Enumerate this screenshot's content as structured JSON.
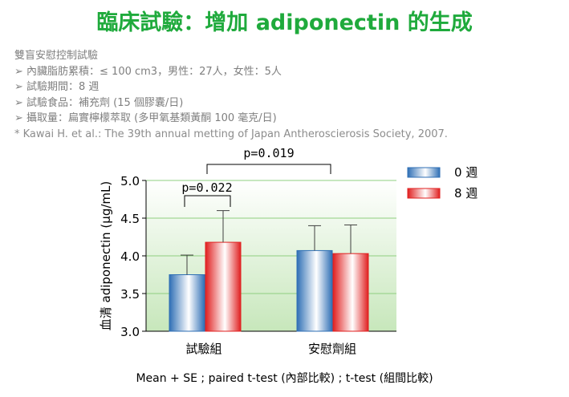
{
  "title": "臨床試驗：增加 adiponectin 的生成",
  "study_info": {
    "heading": "雙盲安慰控制試驗",
    "items": [
      "➢ 內臟脂肪累積：≤ 100 cm3，男性：27人，女性：5人",
      "➢ 試驗期間：8 週",
      "➢ 試驗食品：補充劑 (15 個膠囊/日)",
      "➢ 攝取量：扁實檸檬萃取 (多甲氧基類黃酮 100 毫克/日)"
    ],
    "reference": "* Kawai H. et al.: The 39th annual metting of Japan Antheroscierosis Society, 2007."
  },
  "chart_data": {
    "type": "bar",
    "categories": [
      "試驗組",
      "安慰劑組"
    ],
    "series": [
      {
        "name": "0 週",
        "values": [
          3.75,
          4.07
        ],
        "error": [
          0.26,
          0.33
        ],
        "color": "#2f6fb5"
      },
      {
        "name": "8 週",
        "values": [
          4.18,
          4.03
        ],
        "error": [
          0.42,
          0.38
        ],
        "color": "#e02020"
      }
    ],
    "ylabel": "血清 adiponectin (μg/mL)",
    "ylim": [
      3.0,
      5.0
    ],
    "yticks": [
      "3.0",
      "3.5",
      "4.0",
      "4.5",
      "5.0"
    ],
    "grid": true,
    "legend": "top-right",
    "annotations": [
      {
        "label": "p=0.022"
      },
      {
        "label": "p=0.019"
      }
    ]
  },
  "footer": "Mean + SE ; paired t-test (內部比較) ; t-test (組間比較)",
  "colors": {
    "title": "#1faa3c",
    "bar_blue": "#2f6fb5",
    "bar_red": "#e02020"
  }
}
